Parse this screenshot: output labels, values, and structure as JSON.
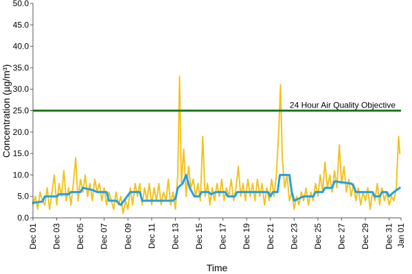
{
  "chart_data": {
    "type": "line",
    "xlabel": "Time",
    "ylabel": "Concentration (µg/m³)",
    "ylim": [
      0,
      50
    ],
    "y_ticks": [
      "0.0",
      "5.0",
      "10.0",
      "15.0",
      "20.0",
      "25.0",
      "30.0",
      "35.0",
      "40.0",
      "45.0",
      "50.0"
    ],
    "x_range_days": [
      0,
      31
    ],
    "x_ticks": [
      {
        "label": "Dec 01",
        "day": 0
      },
      {
        "label": "Dec 03",
        "day": 2
      },
      {
        "label": "Dec 05",
        "day": 4
      },
      {
        "label": "Dec 07",
        "day": 6
      },
      {
        "label": "Dec 09",
        "day": 8
      },
      {
        "label": "Dec 11",
        "day": 10
      },
      {
        "label": "Dec 13",
        "day": 12
      },
      {
        "label": "Dec 15",
        "day": 14
      },
      {
        "label": "Dec 17",
        "day": 16
      },
      {
        "label": "Dec 19",
        "day": 18
      },
      {
        "label": "Dec 21",
        "day": 20
      },
      {
        "label": "Dec 23",
        "day": 22
      },
      {
        "label": "Dec 25",
        "day": 24
      },
      {
        "label": "Dec 27",
        "day": 26
      },
      {
        "label": "Dec 29",
        "day": 28
      },
      {
        "label": "Dec 31",
        "day": 30
      },
      {
        "label": "Jan 01",
        "day": 31
      }
    ],
    "grid": "none",
    "legend": "none",
    "series": [
      {
        "color": "#f2c21b",
        "points": [
          [
            0.0,
            3.0
          ],
          [
            0.2,
            5.0
          ],
          [
            0.4,
            2.0
          ],
          [
            0.6,
            6.0
          ],
          [
            0.8,
            4.0
          ],
          [
            1.0,
            3.0
          ],
          [
            1.2,
            7.0
          ],
          [
            1.4,
            2.0
          ],
          [
            1.6,
            6.0
          ],
          [
            1.8,
            10.0
          ],
          [
            2.0,
            3.0
          ],
          [
            2.2,
            8.0
          ],
          [
            2.4,
            5.0
          ],
          [
            2.6,
            11.0
          ],
          [
            2.8,
            4.0
          ],
          [
            3.0,
            7.0
          ],
          [
            3.2,
            3.0
          ],
          [
            3.4,
            8.0
          ],
          [
            3.6,
            14.0
          ],
          [
            3.8,
            4.0
          ],
          [
            4.0,
            9.0
          ],
          [
            4.2,
            6.0
          ],
          [
            4.4,
            10.0
          ],
          [
            4.6,
            5.0
          ],
          [
            4.8,
            8.0
          ],
          [
            5.0,
            4.0
          ],
          [
            5.2,
            9.0
          ],
          [
            5.4,
            6.0
          ],
          [
            5.6,
            8.0
          ],
          [
            5.8,
            4.0
          ],
          [
            6.0,
            7.0
          ],
          [
            6.2,
            3.0
          ],
          [
            6.4,
            6.0
          ],
          [
            6.6,
            4.0
          ],
          [
            6.8,
            2.0
          ],
          [
            7.0,
            6.0
          ],
          [
            7.2,
            3.0
          ],
          [
            7.4,
            5.0
          ],
          [
            7.6,
            1.0
          ],
          [
            7.8,
            4.0
          ],
          [
            8.0,
            2.0
          ],
          [
            8.2,
            7.0
          ],
          [
            8.4,
            3.0
          ],
          [
            8.6,
            8.0
          ],
          [
            8.8,
            5.0
          ],
          [
            9.0,
            8.0
          ],
          [
            9.2,
            3.0
          ],
          [
            9.4,
            7.0
          ],
          [
            9.6,
            4.0
          ],
          [
            9.8,
            8.0
          ],
          [
            10.0,
            3.0
          ],
          [
            10.2,
            7.0
          ],
          [
            10.4,
            4.0
          ],
          [
            10.6,
            8.0
          ],
          [
            10.8,
            3.0
          ],
          [
            11.0,
            6.0
          ],
          [
            11.2,
            4.0
          ],
          [
            11.4,
            9.0
          ],
          [
            11.6,
            3.0
          ],
          [
            11.8,
            6.0
          ],
          [
            12.0,
            2.0
          ],
          [
            12.2,
            10.0
          ],
          [
            12.35,
            33.0
          ],
          [
            12.5,
            8.0
          ],
          [
            12.7,
            16.0
          ],
          [
            12.9,
            5.0
          ],
          [
            13.1,
            12.0
          ],
          [
            13.3,
            7.0
          ],
          [
            13.5,
            9.0
          ],
          [
            13.7,
            5.0
          ],
          [
            13.9,
            8.0
          ],
          [
            14.1,
            4.0
          ],
          [
            14.3,
            19.0
          ],
          [
            14.5,
            5.0
          ],
          [
            14.7,
            8.0
          ],
          [
            14.9,
            3.0
          ],
          [
            15.1,
            7.0
          ],
          [
            15.3,
            4.0
          ],
          [
            15.5,
            8.0
          ],
          [
            15.7,
            5.0
          ],
          [
            15.9,
            9.0
          ],
          [
            16.1,
            4.0
          ],
          [
            16.3,
            7.0
          ],
          [
            16.5,
            5.0
          ],
          [
            16.7,
            9.0
          ],
          [
            16.9,
            4.0
          ],
          [
            17.1,
            7.0
          ],
          [
            17.3,
            12.0
          ],
          [
            17.5,
            5.0
          ],
          [
            17.7,
            8.0
          ],
          [
            17.9,
            4.0
          ],
          [
            18.1,
            9.0
          ],
          [
            18.3,
            5.0
          ],
          [
            18.5,
            8.0
          ],
          [
            18.7,
            4.0
          ],
          [
            18.9,
            9.0
          ],
          [
            19.1,
            5.0
          ],
          [
            19.3,
            8.0
          ],
          [
            19.5,
            3.0
          ],
          [
            19.7,
            7.0
          ],
          [
            19.9,
            4.0
          ],
          [
            20.1,
            9.0
          ],
          [
            20.3,
            5.0
          ],
          [
            20.5,
            10.0
          ],
          [
            20.7,
            20.0
          ],
          [
            20.85,
            31.0
          ],
          [
            21.0,
            14.0
          ],
          [
            21.2,
            7.0
          ],
          [
            21.4,
            10.0
          ],
          [
            21.6,
            4.0
          ],
          [
            21.8,
            6.0
          ],
          [
            22.0,
            2.0
          ],
          [
            22.2,
            5.0
          ],
          [
            22.4,
            3.0
          ],
          [
            22.6,
            6.0
          ],
          [
            22.8,
            4.0
          ],
          [
            23.0,
            7.0
          ],
          [
            23.2,
            3.0
          ],
          [
            23.4,
            6.0
          ],
          [
            23.6,
            4.0
          ],
          [
            23.8,
            8.0
          ],
          [
            24.0,
            5.0
          ],
          [
            24.2,
            10.0
          ],
          [
            24.4,
            6.0
          ],
          [
            24.6,
            13.0
          ],
          [
            24.8,
            7.0
          ],
          [
            25.0,
            10.0
          ],
          [
            25.2,
            6.0
          ],
          [
            25.4,
            11.0
          ],
          [
            25.6,
            7.0
          ],
          [
            25.8,
            17.0
          ],
          [
            26.0,
            8.0
          ],
          [
            26.2,
            12.0
          ],
          [
            26.4,
            6.0
          ],
          [
            26.6,
            9.0
          ],
          [
            26.8,
            5.0
          ],
          [
            27.0,
            8.0
          ],
          [
            27.2,
            4.0
          ],
          [
            27.4,
            7.0
          ],
          [
            27.6,
            3.0
          ],
          [
            27.8,
            6.0
          ],
          [
            28.0,
            4.0
          ],
          [
            28.2,
            7.0
          ],
          [
            28.4,
            2.0
          ],
          [
            28.6,
            6.0
          ],
          [
            28.8,
            4.0
          ],
          [
            29.0,
            8.0
          ],
          [
            29.2,
            3.0
          ],
          [
            29.4,
            7.0
          ],
          [
            29.6,
            4.0
          ],
          [
            29.8,
            6.0
          ],
          [
            30.0,
            3.0
          ],
          [
            30.2,
            5.0
          ],
          [
            30.4,
            4.0
          ],
          [
            30.6,
            7.0
          ],
          [
            30.8,
            19.0
          ],
          [
            30.9,
            15.0
          ]
        ]
      },
      {
        "color": "#1f9fe8",
        "points": [
          [
            0.0,
            3.5
          ],
          [
            0.8,
            3.8
          ],
          [
            1.0,
            5.0
          ],
          [
            2.0,
            5.0
          ],
          [
            2.2,
            5.5
          ],
          [
            3.0,
            5.5
          ],
          [
            3.2,
            6.0
          ],
          [
            4.0,
            6.0
          ],
          [
            4.2,
            7.0
          ],
          [
            5.0,
            6.5
          ],
          [
            5.4,
            6.0
          ],
          [
            6.2,
            6.0
          ],
          [
            6.4,
            4.0
          ],
          [
            7.0,
            4.0
          ],
          [
            7.4,
            3.0
          ],
          [
            7.8,
            4.5
          ],
          [
            8.2,
            6.0
          ],
          [
            9.0,
            6.0
          ],
          [
            9.2,
            4.0
          ],
          [
            11.8,
            4.0
          ],
          [
            12.0,
            4.5
          ],
          [
            12.2,
            7.0
          ],
          [
            12.6,
            8.0
          ],
          [
            12.9,
            10.0
          ],
          [
            13.2,
            7.0
          ],
          [
            13.6,
            5.0
          ],
          [
            14.0,
            5.0
          ],
          [
            14.2,
            6.0
          ],
          [
            14.8,
            6.0
          ],
          [
            15.0,
            5.5
          ],
          [
            15.4,
            6.0
          ],
          [
            16.2,
            6.0
          ],
          [
            16.4,
            5.0
          ],
          [
            17.0,
            5.0
          ],
          [
            17.2,
            6.0
          ],
          [
            19.8,
            6.0
          ],
          [
            20.0,
            5.0
          ],
          [
            20.2,
            6.0
          ],
          [
            20.6,
            6.0
          ],
          [
            20.8,
            10.0
          ],
          [
            21.6,
            10.0
          ],
          [
            21.8,
            6.0
          ],
          [
            22.0,
            4.0
          ],
          [
            22.4,
            4.5
          ],
          [
            22.8,
            5.0
          ],
          [
            23.6,
            5.0
          ],
          [
            23.8,
            6.0
          ],
          [
            24.4,
            6.0
          ],
          [
            24.6,
            7.0
          ],
          [
            25.2,
            7.0
          ],
          [
            25.4,
            8.5
          ],
          [
            26.8,
            8.0
          ],
          [
            27.0,
            7.5
          ],
          [
            27.2,
            6.0
          ],
          [
            28.6,
            6.0
          ],
          [
            28.8,
            5.0
          ],
          [
            29.2,
            5.0
          ],
          [
            29.4,
            6.0
          ],
          [
            29.8,
            6.0
          ],
          [
            30.0,
            5.0
          ],
          [
            30.4,
            6.0
          ],
          [
            30.9,
            7.0
          ]
        ]
      }
    ],
    "reference_line": {
      "value": 25,
      "label": "24 Hour Air Quality Objective",
      "color": "#1e7b1e"
    }
  }
}
